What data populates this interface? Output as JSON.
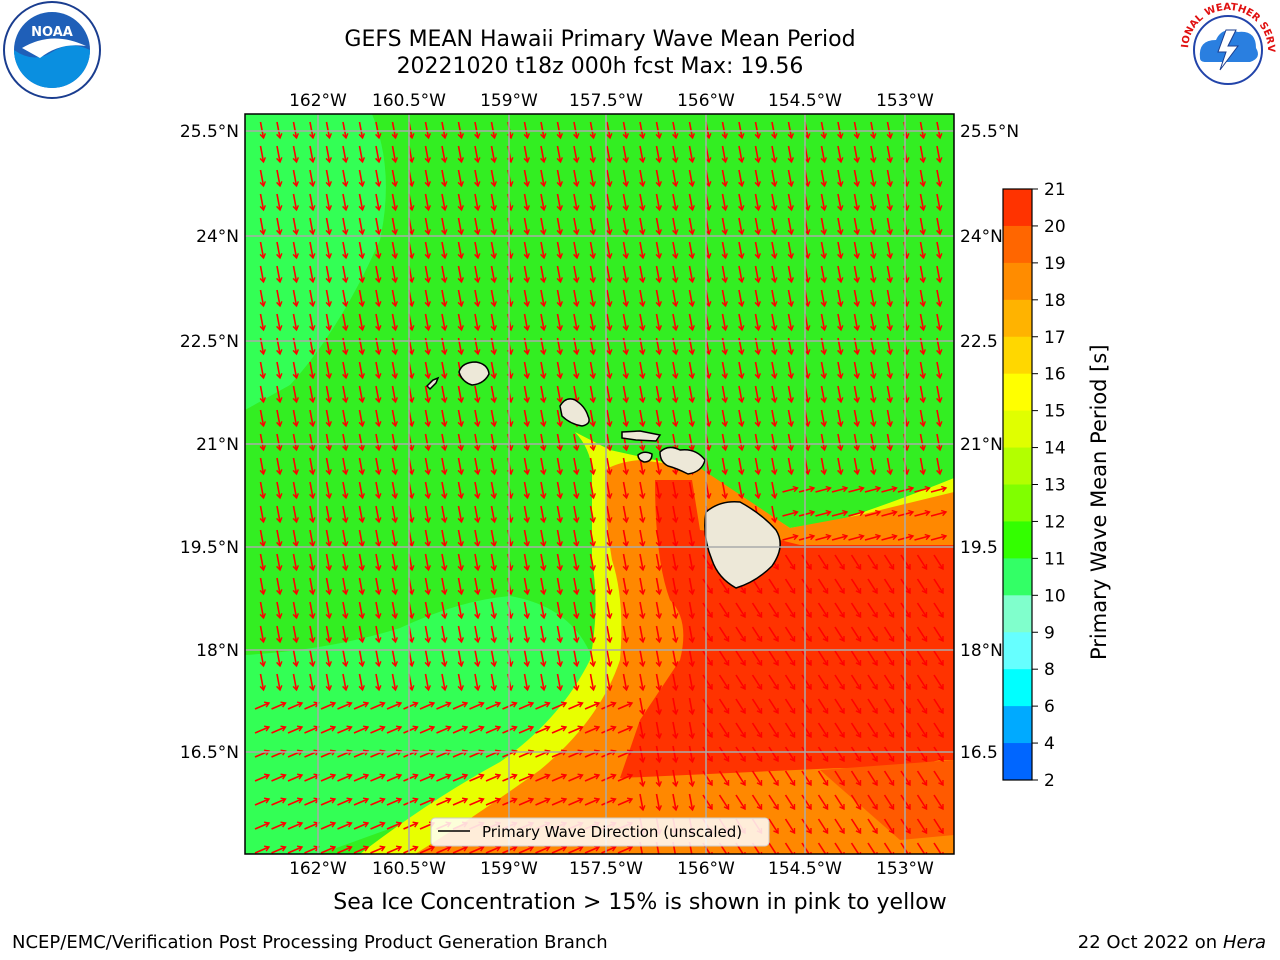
{
  "title_line1": "GEFS MEAN Hawaii Primary Wave Mean Period",
  "title_line2": "20221020 t18z 000h fcst   Max: 19.56",
  "caption": "Sea Ice Concentration > 15% is shown in pink to yellow",
  "footer_left": "NCEP/EMC/Verification Post Processing Product Generation Branch",
  "footer_date": "22 Oct 2022 on",
  "footer_machine": "Hera",
  "longitude_labels": [
    "162°W",
    "160.5°W",
    "159°W",
    "157.5°W",
    "156°W",
    "154.5°W",
    "153°W"
  ],
  "latitude_labels": [
    "25.5°N",
    "24°N",
    "22.5°N",
    "21°N",
    "19.5°N",
    "18°N",
    "16.5°N"
  ],
  "latitude_labels_right": [
    "25.5°N",
    "24°N",
    "22.5",
    "21°N",
    "19.5",
    "18°N",
    "16.5"
  ],
  "legend_label": "Primary Wave Direction (unscaled)",
  "colorbar": {
    "label": "Primary Wave Mean Period [s]",
    "ticks": [
      "21",
      "20",
      "19",
      "18",
      "17",
      "16",
      "15",
      "14",
      "13",
      "12",
      "11",
      "10",
      "9",
      "8",
      "6",
      "4",
      "2"
    ],
    "colors": [
      "#ff0000",
      "#ff3300",
      "#ff6600",
      "#ff8c00",
      "#ffb300",
      "#ffd700",
      "#ffff00",
      "#e0ff00",
      "#b3ff00",
      "#80ff00",
      "#33ff00",
      "#33ff66",
      "#80ffcc",
      "#66ffff",
      "#00ffff",
      "#00aaff",
      "#0066ff",
      "#0000ff"
    ]
  },
  "logos": {
    "noaa_text": "NOAA",
    "nws_text": "NATIONAL WEATHER SERVICE"
  },
  "colors": {
    "ocean_green": "#33ee22",
    "swell_light": "#33ff55",
    "wave_red": "#ff3300",
    "wave_orange": "#ff8000",
    "wave_yellow": "#ffff00",
    "arrow": "#ff0000",
    "land": "#ede8d8"
  }
}
